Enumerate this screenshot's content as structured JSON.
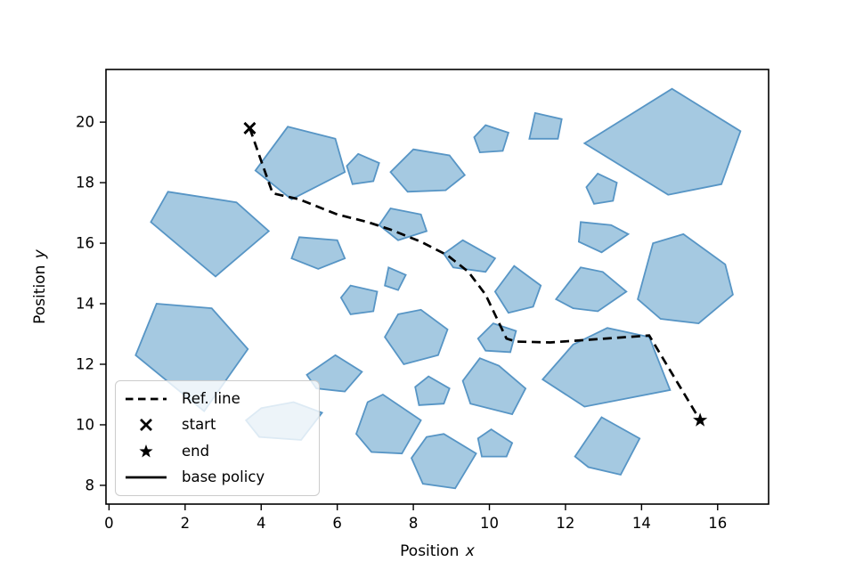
{
  "axes": {
    "xlabel_text": "Position ",
    "xlabel_var": "x",
    "ylabel_text": "Position ",
    "ylabel_var": "y",
    "x_tick_labels": [
      "0",
      "2",
      "4",
      "6",
      "8",
      "10",
      "12",
      "14",
      "16"
    ],
    "y_tick_labels": [
      "8",
      "10",
      "12",
      "14",
      "16",
      "18",
      "20"
    ]
  },
  "legend": {
    "items": [
      {
        "label": "Ref. line",
        "sample": "dashed-line"
      },
      {
        "label": "start",
        "sample": "x-marker"
      },
      {
        "label": "end",
        "sample": "star-marker"
      },
      {
        "label": "base policy",
        "sample": "solid-line"
      }
    ]
  },
  "chart_data": {
    "type": "line",
    "title": "",
    "xlabel": "Position x",
    "ylabel": "Position y",
    "xlim": [
      -0.08,
      17.34
    ],
    "ylim": [
      7.38,
      21.74
    ],
    "x_ticks": [
      0,
      2,
      4,
      6,
      8,
      10,
      12,
      14,
      16
    ],
    "y_ticks": [
      8,
      10,
      12,
      14,
      16,
      18,
      20
    ],
    "grid": false,
    "legend_position": "lower left",
    "colors": {
      "obstacle_fill": "#a5c9e1",
      "obstacle_edge": "#5795c5",
      "line": "#000000",
      "marker": "#000000"
    },
    "series": [
      {
        "name": "Ref. line",
        "kind": "line",
        "style": "dashed",
        "color": "#000000",
        "points": [
          [
            3.7,
            19.8
          ],
          [
            3.95,
            18.9
          ],
          [
            4.3,
            17.65
          ],
          [
            5.0,
            17.45
          ],
          [
            6.0,
            16.95
          ],
          [
            6.8,
            16.7
          ],
          [
            7.4,
            16.45
          ],
          [
            8.2,
            16.05
          ],
          [
            8.9,
            15.6
          ],
          [
            9.45,
            15.05
          ],
          [
            9.9,
            14.3
          ],
          [
            10.2,
            13.5
          ],
          [
            10.45,
            12.85
          ],
          [
            10.7,
            12.75
          ],
          [
            11.6,
            12.72
          ],
          [
            14.2,
            12.95
          ],
          [
            15.54,
            10.15
          ]
        ]
      },
      {
        "name": "start",
        "kind": "scatter",
        "marker": "x",
        "color": "#000000",
        "points": [
          [
            3.7,
            19.8
          ]
        ]
      },
      {
        "name": "end",
        "kind": "scatter",
        "marker": "star",
        "color": "#000000",
        "points": [
          [
            15.54,
            10.15
          ]
        ]
      },
      {
        "name": "base policy",
        "kind": "line",
        "style": "solid",
        "color": "#000000",
        "points": []
      }
    ],
    "obstacles": [
      [
        [
          4.7,
          19.85
        ],
        [
          5.95,
          19.45
        ],
        [
          6.2,
          18.35
        ],
        [
          4.8,
          17.45
        ],
        [
          3.85,
          18.4
        ]
      ],
      [
        [
          6.55,
          18.95
        ],
        [
          7.1,
          18.65
        ],
        [
          6.95,
          18.05
        ],
        [
          6.4,
          17.95
        ],
        [
          6.25,
          18.55
        ]
      ],
      [
        [
          8.0,
          19.1
        ],
        [
          8.95,
          18.9
        ],
        [
          9.35,
          18.25
        ],
        [
          8.85,
          17.75
        ],
        [
          7.85,
          17.7
        ],
        [
          7.4,
          18.35
        ]
      ],
      [
        [
          9.9,
          19.9
        ],
        [
          10.5,
          19.65
        ],
        [
          10.35,
          19.05
        ],
        [
          9.75,
          19.0
        ],
        [
          9.6,
          19.5
        ]
      ],
      [
        [
          11.2,
          20.3
        ],
        [
          11.9,
          20.1
        ],
        [
          11.8,
          19.45
        ],
        [
          11.05,
          19.45
        ]
      ],
      [
        [
          12.5,
          19.3
        ],
        [
          14.8,
          21.1
        ],
        [
          16.6,
          19.7
        ],
        [
          16.1,
          17.95
        ],
        [
          14.7,
          17.6
        ]
      ],
      [
        [
          12.85,
          18.3
        ],
        [
          13.35,
          18.0
        ],
        [
          13.25,
          17.4
        ],
        [
          12.75,
          17.3
        ],
        [
          12.55,
          17.85
        ]
      ],
      [
        [
          1.55,
          17.7
        ],
        [
          3.35,
          17.35
        ],
        [
          4.2,
          16.4
        ],
        [
          2.8,
          14.9
        ],
        [
          1.1,
          16.7
        ]
      ],
      [
        [
          5.0,
          16.2
        ],
        [
          6.0,
          16.1
        ],
        [
          6.2,
          15.5
        ],
        [
          5.5,
          15.15
        ],
        [
          4.8,
          15.5
        ]
      ],
      [
        [
          7.4,
          17.15
        ],
        [
          8.2,
          16.95
        ],
        [
          8.35,
          16.4
        ],
        [
          7.6,
          16.1
        ],
        [
          7.1,
          16.6
        ]
      ],
      [
        [
          9.3,
          16.1
        ],
        [
          10.15,
          15.5
        ],
        [
          9.9,
          15.05
        ],
        [
          9.05,
          15.2
        ],
        [
          8.8,
          15.65
        ]
      ],
      [
        [
          7.35,
          15.2
        ],
        [
          7.8,
          14.95
        ],
        [
          7.6,
          14.45
        ],
        [
          7.25,
          14.6
        ]
      ],
      [
        [
          6.35,
          14.6
        ],
        [
          7.05,
          14.4
        ],
        [
          6.95,
          13.75
        ],
        [
          6.35,
          13.65
        ],
        [
          6.1,
          14.2
        ]
      ],
      [
        [
          10.65,
          15.25
        ],
        [
          11.35,
          14.6
        ],
        [
          11.15,
          13.9
        ],
        [
          10.5,
          13.7
        ],
        [
          10.15,
          14.4
        ]
      ],
      [
        [
          12.4,
          15.2
        ],
        [
          12.98,
          15.05
        ],
        [
          13.6,
          14.4
        ],
        [
          12.85,
          13.75
        ],
        [
          12.2,
          13.85
        ],
        [
          11.75,
          14.15
        ]
      ],
      [
        [
          12.4,
          16.7
        ],
        [
          13.2,
          16.6
        ],
        [
          13.65,
          16.3
        ],
        [
          12.95,
          15.7
        ],
        [
          12.35,
          16.05
        ]
      ],
      [
        [
          14.3,
          16.0
        ],
        [
          15.1,
          16.3
        ],
        [
          16.2,
          15.3
        ],
        [
          16.4,
          14.3
        ],
        [
          15.5,
          13.35
        ],
        [
          14.5,
          13.5
        ],
        [
          13.9,
          14.15
        ]
      ],
      [
        [
          1.25,
          14.0
        ],
        [
          2.7,
          13.85
        ],
        [
          3.65,
          12.5
        ],
        [
          2.5,
          10.45
        ],
        [
          0.7,
          12.3
        ]
      ],
      [
        [
          5.95,
          12.3
        ],
        [
          6.65,
          11.75
        ],
        [
          6.2,
          11.1
        ],
        [
          5.45,
          11.2
        ],
        [
          5.2,
          11.65
        ]
      ],
      [
        [
          4.0,
          10.55
        ],
        [
          4.85,
          10.75
        ],
        [
          5.6,
          10.4
        ],
        [
          5.05,
          9.5
        ],
        [
          3.95,
          9.6
        ],
        [
          3.6,
          10.15
        ]
      ],
      [
        [
          7.6,
          13.65
        ],
        [
          8.2,
          13.8
        ],
        [
          8.9,
          13.15
        ],
        [
          8.65,
          12.3
        ],
        [
          7.75,
          12.0
        ],
        [
          7.25,
          12.9
        ]
      ],
      [
        [
          10.1,
          13.35
        ],
        [
          10.7,
          13.1
        ],
        [
          10.55,
          12.4
        ],
        [
          9.9,
          12.45
        ],
        [
          9.7,
          12.85
        ]
      ],
      [
        [
          11.4,
          11.5
        ],
        [
          12.2,
          12.65
        ],
        [
          13.1,
          13.2
        ],
        [
          14.2,
          12.9
        ],
        [
          14.75,
          11.15
        ],
        [
          12.5,
          10.6
        ]
      ],
      [
        [
          6.8,
          10.75
        ],
        [
          7.2,
          11.0
        ],
        [
          8.2,
          10.15
        ],
        [
          7.7,
          9.05
        ],
        [
          6.9,
          9.1
        ],
        [
          6.5,
          9.7
        ]
      ],
      [
        [
          8.4,
          11.6
        ],
        [
          8.95,
          11.2
        ],
        [
          8.8,
          10.7
        ],
        [
          8.15,
          10.65
        ],
        [
          8.05,
          11.25
        ]
      ],
      [
        [
          9.75,
          12.2
        ],
        [
          10.25,
          11.95
        ],
        [
          10.95,
          11.2
        ],
        [
          10.6,
          10.35
        ],
        [
          9.5,
          10.7
        ],
        [
          9.3,
          11.45
        ]
      ],
      [
        [
          8.35,
          9.6
        ],
        [
          8.8,
          9.7
        ],
        [
          9.65,
          9.05
        ],
        [
          9.1,
          7.9
        ],
        [
          8.25,
          8.05
        ],
        [
          7.95,
          8.9
        ]
      ],
      [
        [
          10.05,
          9.85
        ],
        [
          10.6,
          9.4
        ],
        [
          10.45,
          8.95
        ],
        [
          9.8,
          8.95
        ],
        [
          9.7,
          9.55
        ]
      ],
      [
        [
          12.95,
          10.25
        ],
        [
          13.95,
          9.55
        ],
        [
          13.45,
          8.35
        ],
        [
          12.6,
          8.6
        ],
        [
          12.25,
          8.95
        ]
      ]
    ]
  }
}
